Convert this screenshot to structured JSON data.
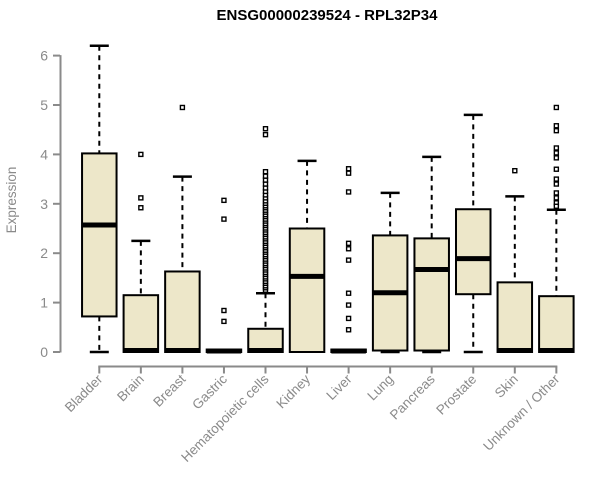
{
  "colors": {
    "box_fill": "#EDE7C9",
    "box_border": "#000000",
    "median": "#000000",
    "whisker": "#000000",
    "axis": "#8A8A8A",
    "tick_label": "#8A8A8A",
    "title": "#000000",
    "background": "#FFFFFF"
  },
  "chart_data": {
    "type": "boxplot",
    "title": "ENSG00000239524 - RPL32P34",
    "ylabel": "Expression",
    "xlabel": "",
    "ylim": [
      0,
      6.3
    ],
    "yticks": [
      0,
      1,
      2,
      3,
      4,
      5,
      6
    ],
    "ytick_labels": [
      "0",
      "1",
      "2",
      "3",
      "4",
      "5",
      "6"
    ],
    "grid": false,
    "legend": false,
    "categories": [
      "Bladder",
      "Brain",
      "Breast",
      "Gastric",
      "Hematopoietic cells",
      "Kidney",
      "Liver",
      "Lung",
      "Pancreas",
      "Prostate",
      "Skin",
      "Unknown / Other"
    ],
    "series": [
      {
        "label": "Bladder",
        "min": 0,
        "q1": 0.72,
        "med": 2.57,
        "q3": 4.02,
        "max": 6.2,
        "outliers": []
      },
      {
        "label": "Brain",
        "min": 0,
        "q1": 0,
        "med": 0.03,
        "q3": 1.15,
        "max": 2.25,
        "outliers": [
          4.0,
          3.12,
          2.92
        ]
      },
      {
        "label": "Breast",
        "min": 0,
        "q1": 0,
        "med": 0.03,
        "q3": 1.63,
        "max": 3.55,
        "outliers": [
          4.95
        ]
      },
      {
        "label": "Gastric",
        "min": 0,
        "q1": 0,
        "med": 0.02,
        "q3": 0.05,
        "max": 0.05,
        "outliers": [
          3.07,
          2.69,
          0.84,
          0.62
        ]
      },
      {
        "label": "Hematopoietic cells",
        "min": 0,
        "q1": 0,
        "med": 0.03,
        "q3": 0.47,
        "max": 1.19,
        "outliers": [
          1.25,
          1.3,
          1.34,
          1.39,
          1.43,
          1.48,
          1.52,
          1.57,
          1.61,
          1.66,
          1.7,
          1.75,
          1.79,
          1.84,
          1.88,
          1.93,
          1.97,
          2.02,
          2.06,
          2.11,
          2.15,
          2.2,
          2.24,
          2.29,
          2.33,
          2.38,
          2.42,
          2.47,
          2.51,
          2.56,
          2.6,
          2.65,
          2.69,
          2.74,
          2.78,
          2.83,
          2.87,
          2.92,
          2.96,
          3.01,
          3.06,
          3.12,
          3.18,
          3.25,
          3.32,
          3.4,
          3.48,
          3.56,
          3.65,
          4.4,
          4.52
        ]
      },
      {
        "label": "Kidney",
        "min": 0,
        "q1": 0,
        "med": 1.53,
        "q3": 2.5,
        "max": 3.87,
        "outliers": []
      },
      {
        "label": "Liver",
        "min": 0,
        "q1": 0,
        "med": 0.02,
        "q3": 0.05,
        "max": 0.05,
        "outliers": [
          3.71,
          3.62,
          3.24,
          2.2,
          2.09,
          1.86,
          1.19,
          0.95,
          0.68,
          0.45
        ]
      },
      {
        "label": "Lung",
        "min": 0,
        "q1": 0.03,
        "med": 1.2,
        "q3": 2.36,
        "max": 3.22,
        "outliers": []
      },
      {
        "label": "Pancreas",
        "min": 0,
        "q1": 0.03,
        "med": 1.67,
        "q3": 2.3,
        "max": 3.95,
        "outliers": []
      },
      {
        "label": "Prostate",
        "min": 0,
        "q1": 1.17,
        "med": 1.89,
        "q3": 2.89,
        "max": 4.8,
        "outliers": []
      },
      {
        "label": "Skin",
        "min": 0,
        "q1": 0,
        "med": 0.03,
        "q3": 1.41,
        "max": 3.15,
        "outliers": [
          3.67
        ]
      },
      {
        "label": "Unknown / Other",
        "min": 0,
        "q1": 0,
        "med": 0.03,
        "q3": 1.13,
        "max": 2.88,
        "outliers": [
          4.95,
          4.58,
          4.48,
          4.13,
          4.03,
          3.93,
          3.7,
          3.5,
          3.4,
          3.22,
          3.12,
          3.02,
          2.95
        ]
      }
    ]
  }
}
